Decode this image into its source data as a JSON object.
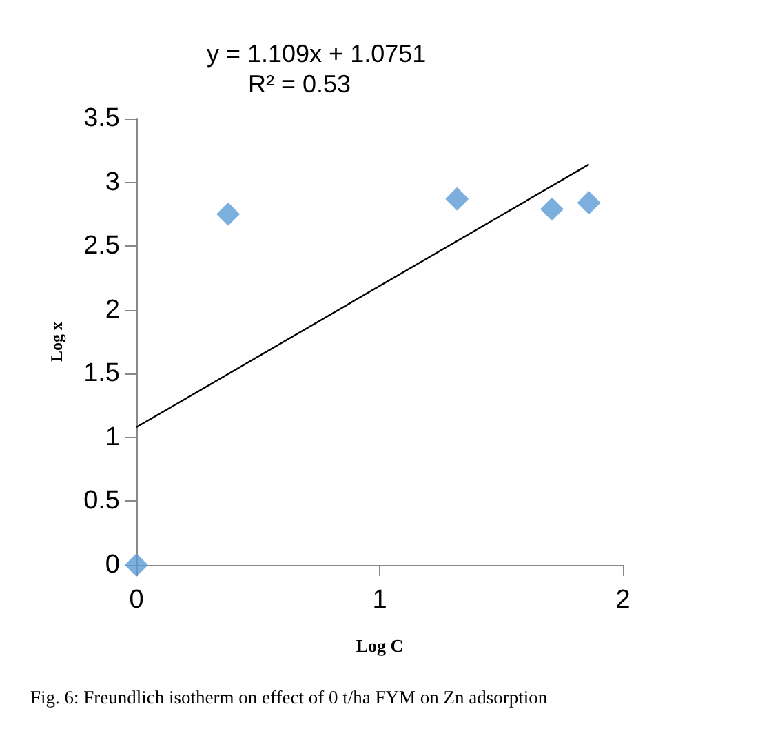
{
  "chart_data": {
    "type": "scatter",
    "xlabel": "Log C",
    "ylabel": "Log x",
    "x": [
      0,
      0.377,
      1.318,
      1.708,
      1.86
    ],
    "series": [
      {
        "color": "#5b9bd5",
        "marker": "diamond",
        "values": [
          0,
          2.75,
          2.87,
          2.79,
          2.84
        ]
      },
      {
        "type": "line",
        "color": "#000000",
        "marker": "none",
        "x": [
          0,
          1.86
        ],
        "values": [
          1.08,
          3.14
        ]
      }
    ],
    "xlim": [
      0,
      2
    ],
    "xticks": [
      0,
      1,
      2
    ],
    "ylim": [
      0,
      3.5
    ],
    "yticks": [
      0,
      0.5,
      1,
      1.5,
      2,
      2.5,
      3,
      3.5
    ],
    "grid": false,
    "annotations": [
      "y = 1.109x + 1.0751",
      "R² = 0.53",
      "Fig. 6: Freundlich isotherm on effect of 0 t/ha FYM on Zn adsorption"
    ]
  }
}
